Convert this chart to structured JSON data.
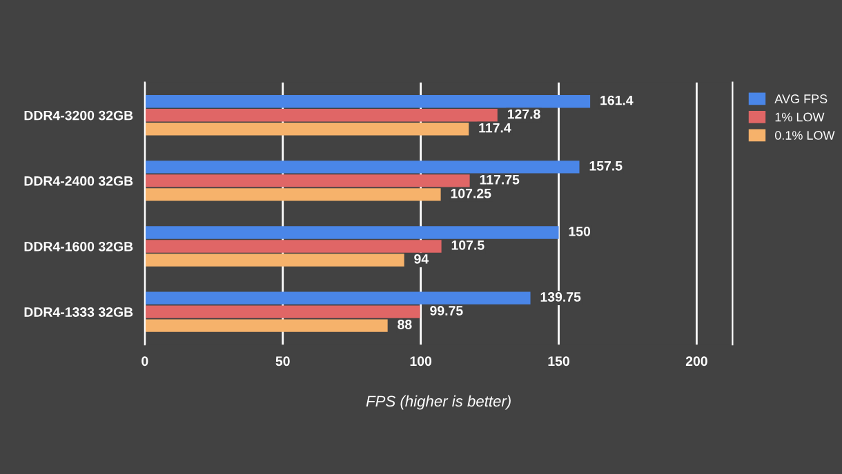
{
  "chart_data": {
    "type": "bar",
    "orientation": "horizontal",
    "xlabel": "FPS (higher is better)",
    "categories": [
      "DDR4-3200 32GB",
      "DDR4-2400 32GB",
      "DDR4-1600 32GB",
      "DDR4-1333 32GB"
    ],
    "series": [
      {
        "name": "AVG FPS",
        "color": "#4a86e8",
        "values": [
          161.4,
          157.5,
          150,
          139.75
        ]
      },
      {
        "name": "1% LOW",
        "color": "#e06666",
        "values": [
          127.8,
          117.75,
          107.5,
          99.75
        ]
      },
      {
        "name": "0.1% LOW",
        "color": "#f6b26b",
        "values": [
          117.4,
          107.25,
          94,
          88
        ]
      }
    ],
    "xlim": [
      0,
      213
    ],
    "xticks": [
      0,
      50,
      100,
      150,
      200
    ],
    "grid": "x",
    "legend": "top right",
    "data_labels": true
  }
}
